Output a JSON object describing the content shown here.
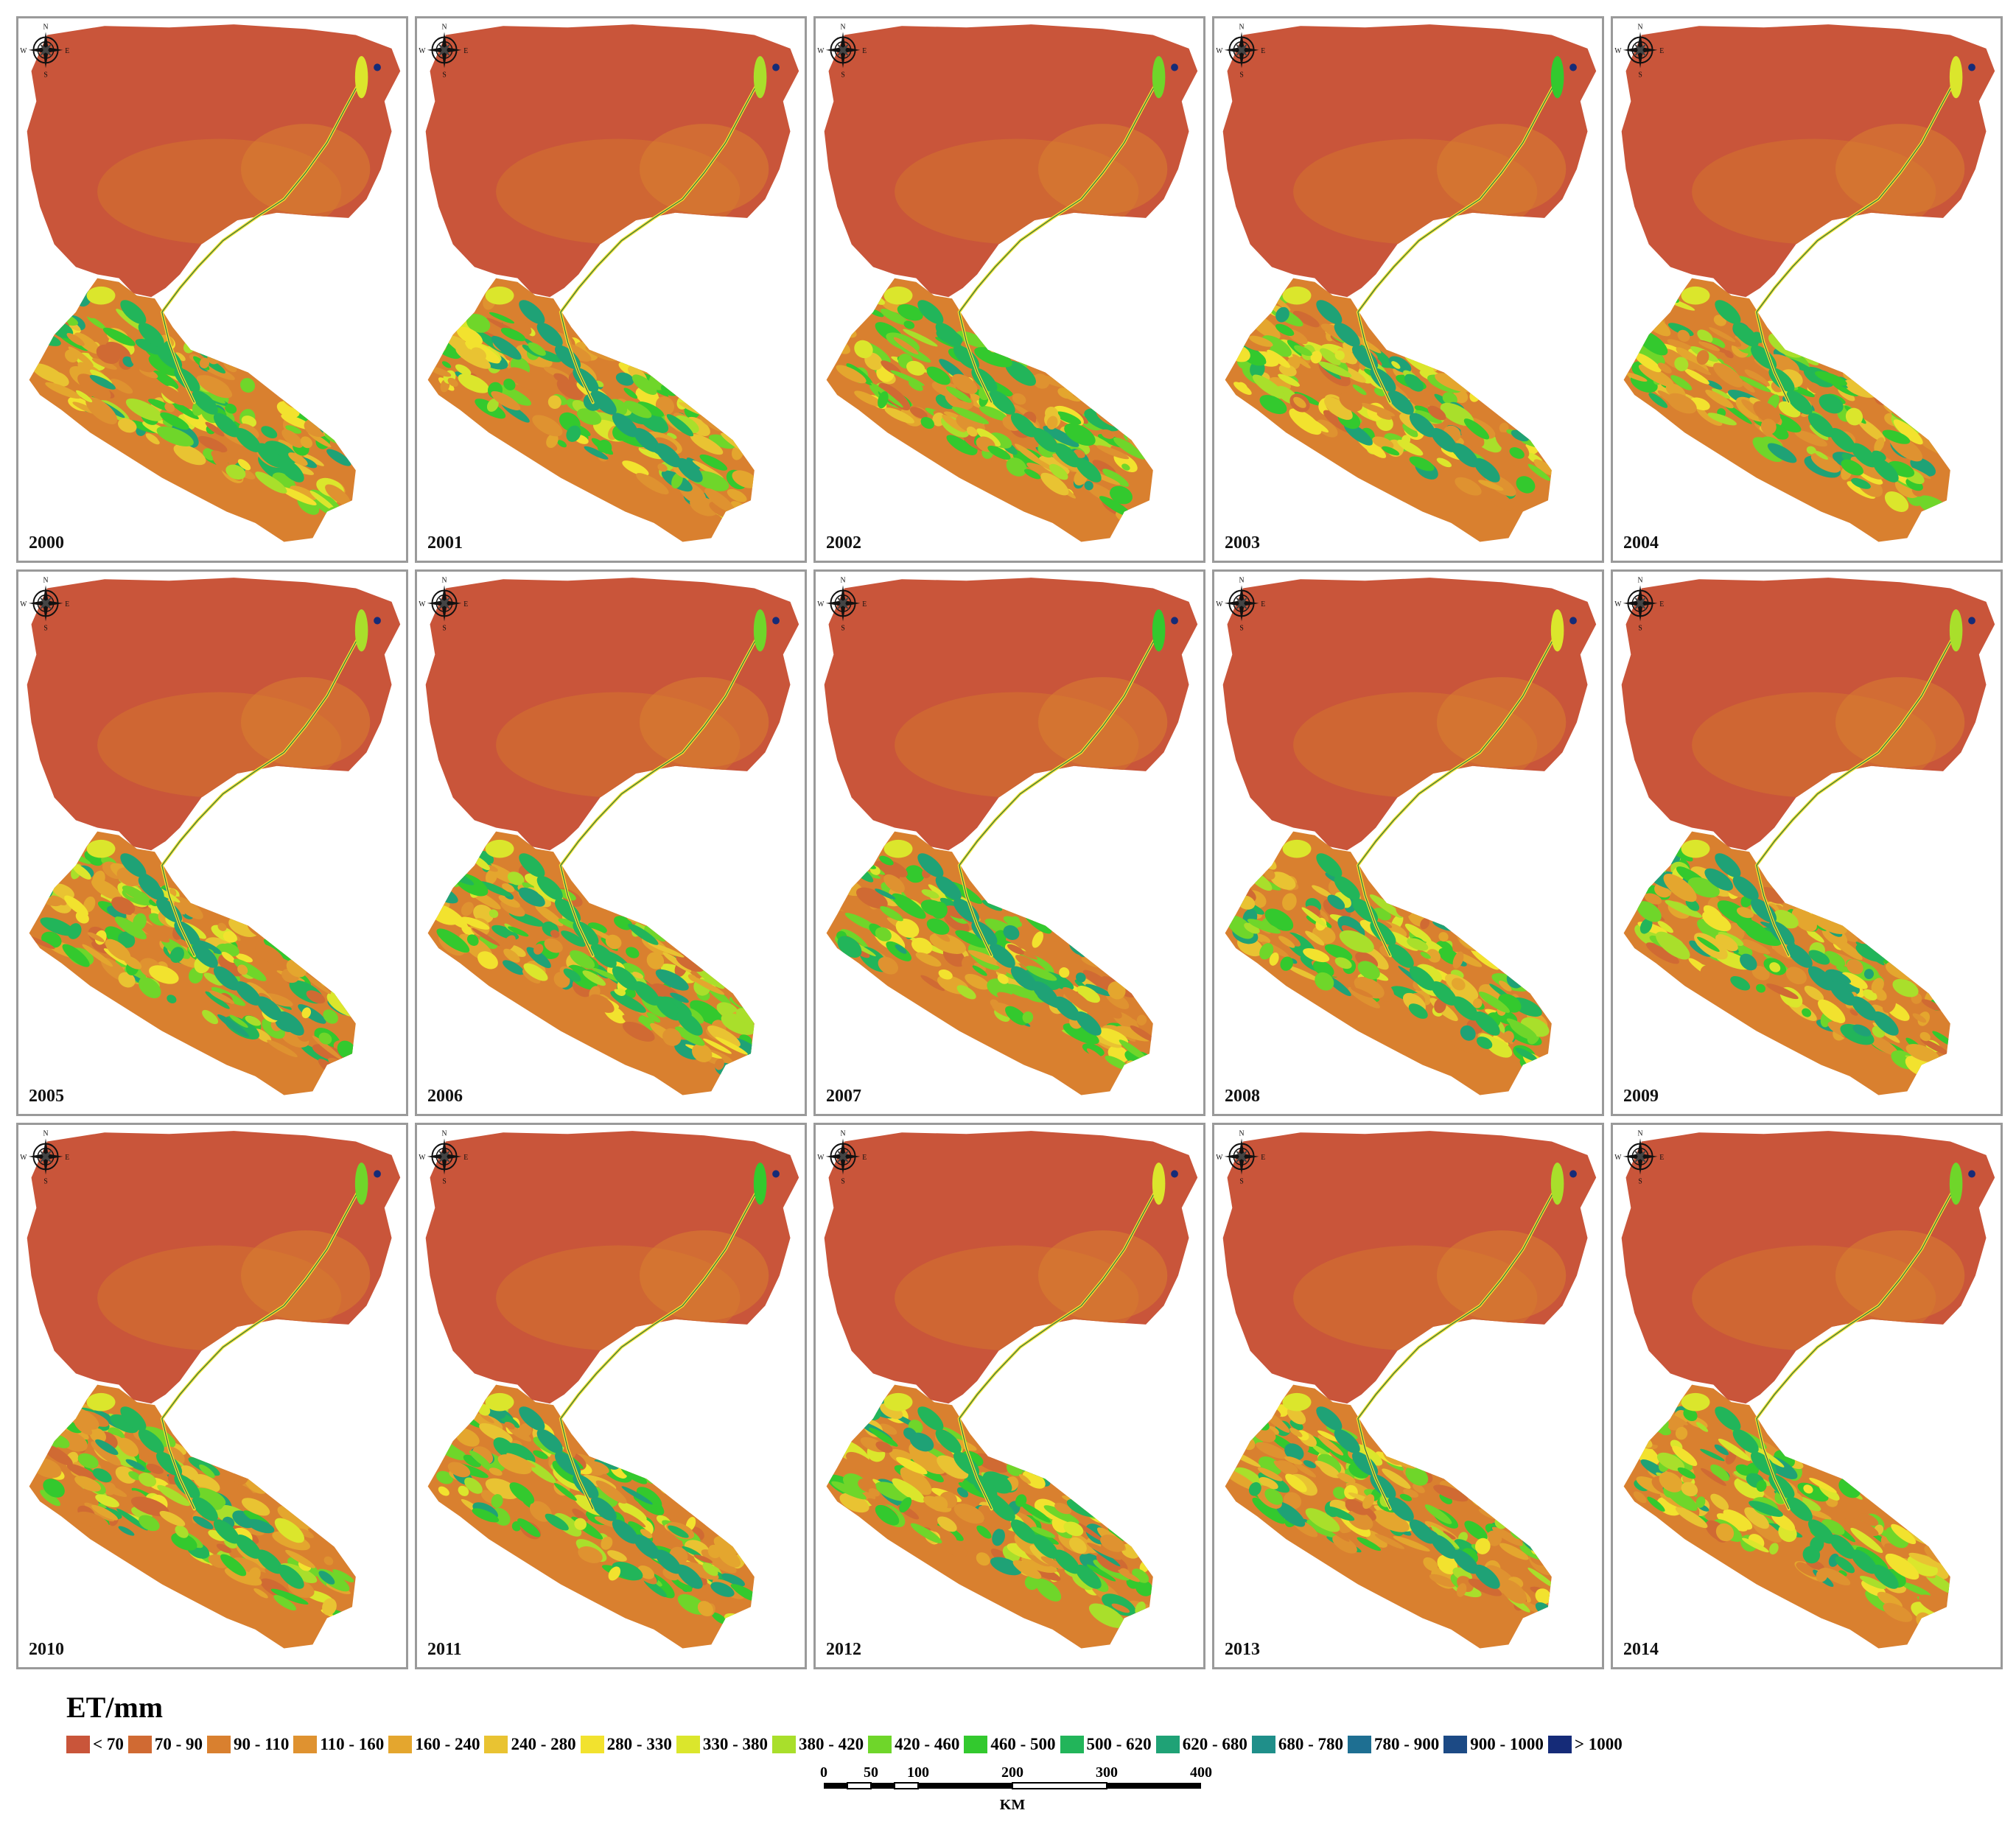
{
  "figure": {
    "years": [
      "2000",
      "2001",
      "2002",
      "2003",
      "2004",
      "2005",
      "2006",
      "2007",
      "2008",
      "2009",
      "2010",
      "2011",
      "2012",
      "2013",
      "2014"
    ],
    "compass": {
      "n": "N",
      "s": "S",
      "e": "E",
      "w": "W"
    }
  },
  "legend": {
    "title": "ET/mm",
    "classes": [
      {
        "label": "< 70",
        "color": "#c9553a"
      },
      {
        "label": "70 - 90",
        "color": "#d06a33"
      },
      {
        "label": "90 - 110",
        "color": "#d9802f"
      },
      {
        "label": "110 - 160",
        "color": "#df9230"
      },
      {
        "label": "160 - 240",
        "color": "#e4a62e"
      },
      {
        "label": "240 - 280",
        "color": "#e9c332"
      },
      {
        "label": "280 - 330",
        "color": "#f2e22e"
      },
      {
        "label": "330 - 380",
        "color": "#dbe62c"
      },
      {
        "label": "380 - 420",
        "color": "#a9df2b"
      },
      {
        "label": "420 - 460",
        "color": "#6fd62a"
      },
      {
        "label": "460 - 500",
        "color": "#33c92e"
      },
      {
        "label": "500 - 620",
        "color": "#22b55a"
      },
      {
        "label": "620 - 680",
        "color": "#1fa276"
      },
      {
        "label": "680 - 780",
        "color": "#1f8f8a"
      },
      {
        "label": "780 - 900",
        "color": "#1e6f92"
      },
      {
        "label": "900 - 1000",
        "color": "#1c4a85"
      },
      {
        "label": "> 1000",
        "color": "#152b78"
      }
    ]
  },
  "scalebar": {
    "ticks": [
      "0",
      "50",
      "100",
      "200",
      "300",
      "400"
    ],
    "unit": "KM"
  }
}
